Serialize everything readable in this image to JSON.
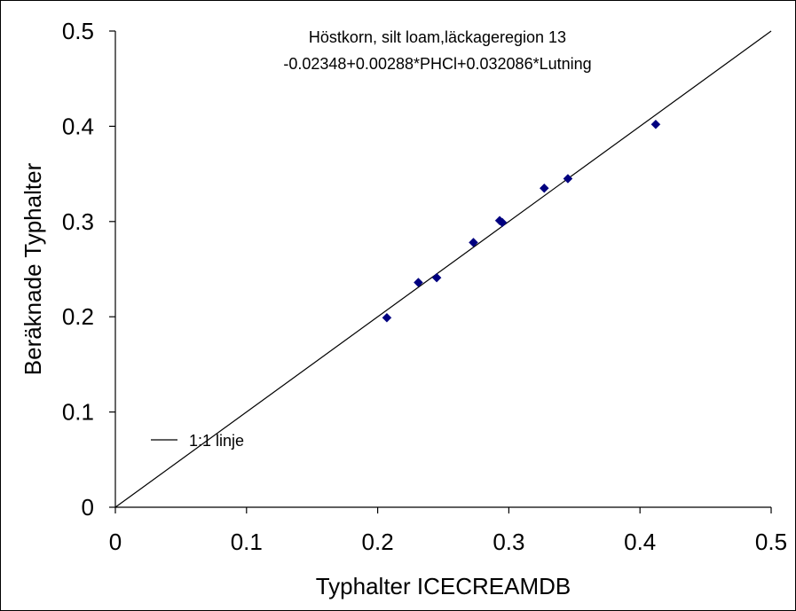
{
  "chart_data": {
    "type": "scatter",
    "title": "Höstkorn, silt loam,läckageregion 13",
    "subtitle": "-0.02348+0.00288*PHCl+0.032086*Lutning",
    "xlabel": "Typhalter ICECREAMDB",
    "ylabel": "Beräknade Typhalter",
    "xlim": [
      0,
      0.5
    ],
    "ylim": [
      0,
      0.5
    ],
    "x_ticks": [
      "0",
      "0.1",
      "0.2",
      "0.3",
      "0.4",
      "0.5"
    ],
    "y_ticks": [
      "0",
      "0.1",
      "0.2",
      "0.3",
      "0.4",
      "0.5"
    ],
    "grid": false,
    "legend": {
      "label": "1:1 linje",
      "placement": "left"
    },
    "reference_line": {
      "name": "1:1 linje",
      "x": [
        0,
        0.5
      ],
      "y": [
        0,
        0.5
      ]
    },
    "series": [
      {
        "color": "#000080",
        "marker": "diamond",
        "x": [
          0.207,
          0.231,
          0.245,
          0.273,
          0.293,
          0.295,
          0.327,
          0.345,
          0.412
        ],
        "y": [
          0.199,
          0.236,
          0.241,
          0.278,
          0.301,
          0.299,
          0.335,
          0.345,
          0.402
        ]
      }
    ]
  }
}
